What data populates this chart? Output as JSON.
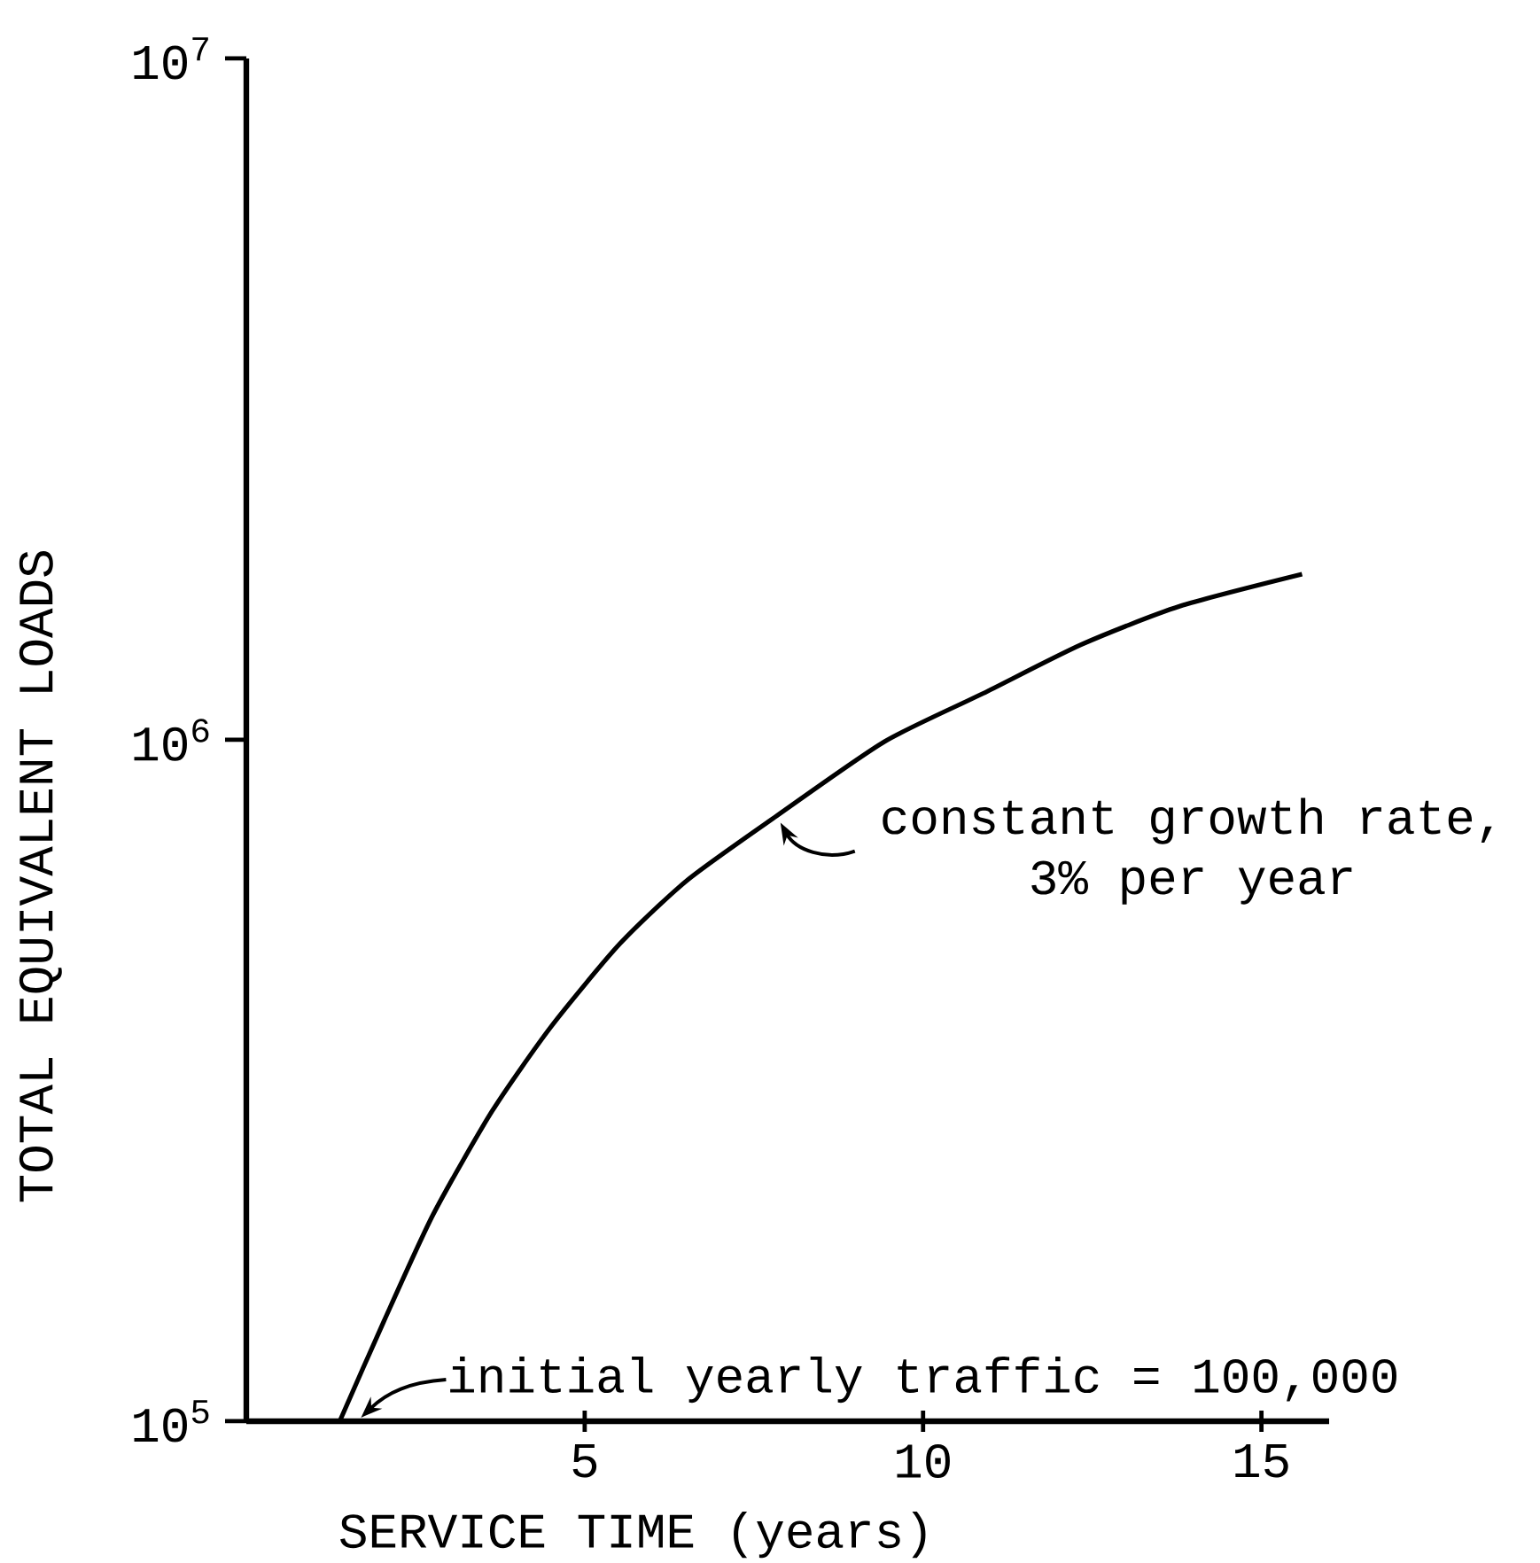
{
  "chart_data": {
    "type": "line",
    "xlabel": "SERVICE TIME (years)",
    "ylabel": "TOTAL EQUIVALENT LOADS",
    "color": "#000000",
    "marker": "none",
    "line_style": "solid",
    "log": "y",
    "x": [
      1.38,
      2.03,
      2.76,
      3.63,
      4.5,
      5.52,
      6.53,
      7.84,
      9.43,
      10.89,
      12.34,
      13.79,
      15.6
    ],
    "values": [
      100000,
      140000,
      201000,
      285000,
      379000,
      502000,
      624000,
      774000,
      994000,
      1170000,
      1380000,
      1570000,
      1750000
    ],
    "xlim": [
      0,
      16
    ],
    "ylim": [
      100000,
      10000000
    ],
    "xticks": [
      5,
      10,
      15
    ],
    "yticks": [
      {
        "value": 100000,
        "label": "10$^{5}$"
      },
      {
        "value": 1000000,
        "label": "10$^{6}$"
      },
      {
        "value": 10000000,
        "label": "10$^{7}$"
      }
    ],
    "annotations": [
      {
        "text": "constant growth rate, 3% per year",
        "x": 7.84,
        "y": 774000
      },
      {
        "text": "initial yearly traffic = 100,000",
        "x": 1.38,
        "y": 100000
      }
    ]
  }
}
